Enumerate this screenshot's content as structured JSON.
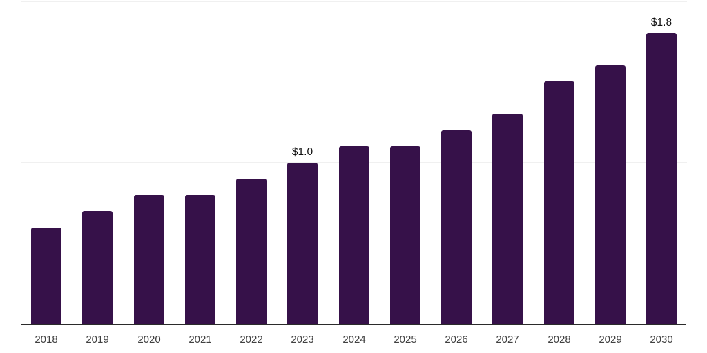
{
  "chart_data": {
    "type": "bar",
    "title": "",
    "xlabel": "",
    "ylabel": "",
    "categories": [
      "2018",
      "2019",
      "2020",
      "2021",
      "2022",
      "2023",
      "2024",
      "2025",
      "2026",
      "2027",
      "2028",
      "2029",
      "2030"
    ],
    "values": [
      0.6,
      0.7,
      0.8,
      0.8,
      0.9,
      1.0,
      1.1,
      1.1,
      1.2,
      1.3,
      1.5,
      1.6,
      1.8
    ],
    "annotations": [
      {
        "category": "2023",
        "text": "$1.0"
      },
      {
        "category": "2030",
        "text": "$1.8"
      }
    ],
    "ylim": [
      0,
      2.0
    ],
    "gridline_values": [
      1.0,
      2.0
    ],
    "grid": "horizontal-only",
    "legend": "none",
    "colors": {
      "bar": "#361149",
      "gridline": "#f0f0f0",
      "axis_line": "#2b2b2b",
      "tick_text": "#404040",
      "annotation_text": "#111111",
      "background": "#ffffff"
    }
  }
}
